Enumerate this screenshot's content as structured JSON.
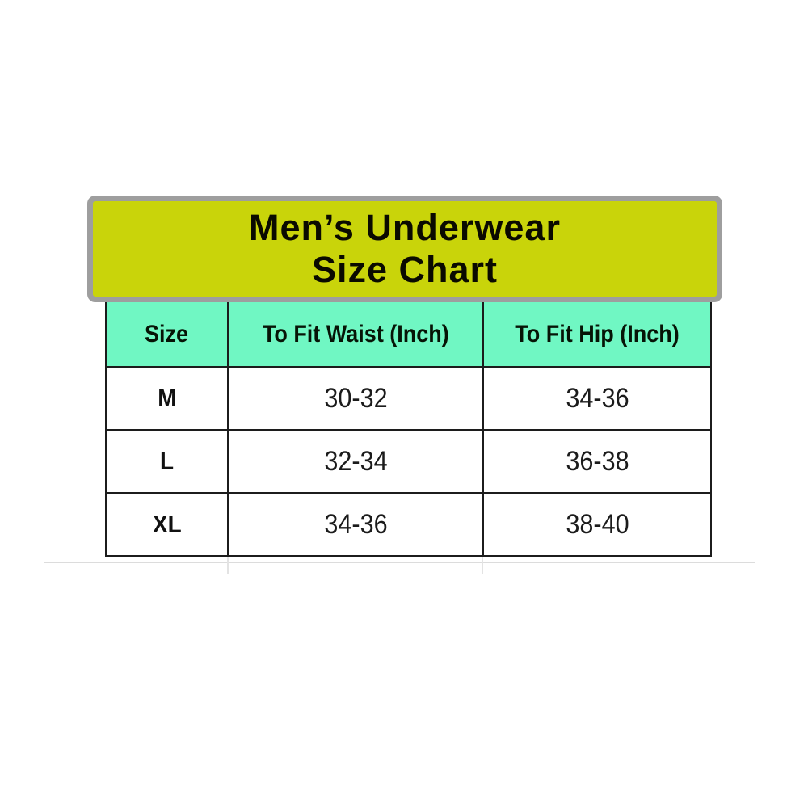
{
  "banner": {
    "line1": "Men’s Underwear",
    "line2": "Size Chart"
  },
  "chart_data": {
    "type": "table",
    "title": "Men’s Underwear Size Chart",
    "columns": [
      "Size",
      "To Fit Waist (Inch)",
      "To Fit Hip (Inch)"
    ],
    "rows": [
      [
        "M",
        "30-32",
        "34-36"
      ],
      [
        "L",
        "32-34",
        "36-38"
      ],
      [
        "XL",
        "34-36",
        "38-40"
      ]
    ],
    "units": "inches"
  },
  "colors": {
    "banner_background": "#c9d40a",
    "banner_border": "#9e9e9e",
    "header_background": "#70f7c3",
    "grid_line": "#1c1c1c"
  }
}
